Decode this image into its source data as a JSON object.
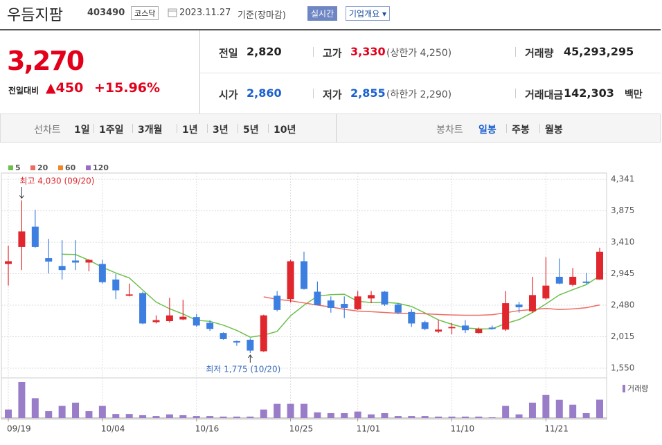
{
  "header": {
    "name": "우듬지팜",
    "code": "403490",
    "market": "코스닥",
    "date": "2023.11.27",
    "basis": "기준(장마감)",
    "realtime": "실시간",
    "overview": "기업개요"
  },
  "summary": {
    "price": "3,270",
    "change_label": "전일대비",
    "change": "450",
    "change_pct": "+15.96%",
    "items": [
      {
        "label": "전일",
        "value": "2,820"
      },
      {
        "label": "고가",
        "value": "3,330",
        "extra": "(상한가 4,250)"
      },
      {
        "label": "거래량",
        "value": "45,293,295"
      },
      {
        "label": "시가",
        "value": "2,860"
      },
      {
        "label": "저가",
        "value": "2,855",
        "extra": "(하한가 2,290)"
      },
      {
        "label": "거래대금",
        "value": "142,303",
        "unit": "백만"
      }
    ]
  },
  "tabs": {
    "line_label": "선차트",
    "line_options": [
      "1일",
      "1주일",
      "3개월",
      "1년",
      "3년",
      "5년",
      "10년"
    ],
    "candle_label": "봉차트",
    "candle_options": [
      "일봉",
      "주봉",
      "월봉"
    ]
  },
  "chart_data": {
    "type": "candlestick",
    "categories": [
      "09/19",
      null,
      null,
      null,
      null,
      null,
      null,
      "10/04",
      null,
      null,
      null,
      null,
      null,
      null,
      "10/16",
      null,
      null,
      null,
      null,
      null,
      null,
      "10/25",
      null,
      null,
      null,
      null,
      "11/01",
      null,
      null,
      null,
      null,
      null,
      null,
      "11/10",
      null,
      null,
      null,
      null,
      null,
      null,
      "11/21",
      null,
      null,
      null,
      null
    ],
    "open": [
      3090,
      3340,
      3640,
      3175,
      3060,
      3140,
      3110,
      3090,
      2860,
      2630,
      2660,
      2230,
      2245,
      2270,
      2305,
      2220,
      2070,
      1950,
      1970,
      1800,
      2620,
      2570,
      3130,
      2680,
      2550,
      2500,
      2420,
      2580,
      2680,
      2490,
      2380,
      2230,
      2090,
      2140,
      2180,
      2070,
      2150,
      2120,
      2490,
      2390,
      2580,
      2900,
      2780,
      2830,
      2860
    ],
    "high": [
      3360,
      4030,
      3890,
      3460,
      3440,
      3440,
      3160,
      3150,
      2940,
      2800,
      2680,
      2330,
      2590,
      2560,
      2350,
      2260,
      2080,
      1960,
      1990,
      2340,
      2690,
      3150,
      3270,
      2830,
      2610,
      2610,
      2690,
      2690,
      2690,
      2510,
      2420,
      2250,
      2260,
      2220,
      2260,
      2150,
      2180,
      2690,
      2530,
      2900,
      3190,
      3170,
      3030,
      2960,
      3330
    ],
    "low": [
      2770,
      3000,
      3330,
      2950,
      2860,
      3000,
      2980,
      2800,
      2570,
      2610,
      2200,
      2210,
      2225,
      2260,
      2160,
      2100,
      1970,
      1880,
      1775,
      1790,
      2390,
      2520,
      2710,
      2480,
      2370,
      2290,
      2410,
      2510,
      2470,
      2350,
      2160,
      2110,
      2070,
      2050,
      2070,
      2060,
      2120,
      2100,
      2370,
      2370,
      2560,
      2790,
      2760,
      2790,
      2855
    ],
    "close": [
      3130,
      3570,
      3340,
      3125,
      3000,
      3110,
      3150,
      2820,
      2700,
      2640,
      2210,
      2260,
      2330,
      2310,
      2180,
      2130,
      1980,
      1940,
      1810,
      2330,
      2410,
      3130,
      2720,
      2480,
      2440,
      2440,
      2610,
      2630,
      2490,
      2370,
      2210,
      2130,
      2120,
      2160,
      2110,
      2130,
      2140,
      2510,
      2450,
      2630,
      2770,
      2800,
      2900,
      2820,
      3270
    ],
    "up_color": "#e0272d",
    "down_color": "#3d7fe0",
    "moving_averages": [
      {
        "name": "5",
        "color": "#6cc04a",
        "shown": true
      },
      {
        "name": "20",
        "color": "#ee6b63",
        "shown": true
      },
      {
        "name": "60",
        "color": "#f0882a",
        "shown": false
      },
      {
        "name": "120",
        "color": "#9a6cc8",
        "shown": false
      }
    ],
    "volume": {
      "name": "거래량",
      "color": "#9a7dc8",
      "values": [
        21000000,
        89000000,
        49000000,
        17000000,
        30000000,
        38000000,
        17000000,
        30000000,
        10000000,
        10000000,
        7000000,
        5000000,
        9000000,
        7000000,
        5000000,
        5000000,
        3500000,
        3500000,
        3500000,
        21000000,
        35000000,
        35000000,
        35000000,
        14000000,
        12000000,
        12000000,
        16000000,
        9000000,
        12000000,
        5000000,
        5000000,
        5000000,
        3500000,
        3500000,
        3500000,
        3500000,
        1800000,
        30000000,
        9000000,
        38000000,
        57000000,
        45000000,
        33000000,
        12000000,
        45293295
      ]
    },
    "ylim": [
      1550,
      4341
    ],
    "yticks": [
      {
        "value": 1550,
        "label": "1,550"
      },
      {
        "value": 2015,
        "label": "2,015"
      },
      {
        "value": 2480,
        "label": "2,480"
      },
      {
        "value": 2945,
        "label": "2,945"
      },
      {
        "value": 3410,
        "label": "3,410"
      },
      {
        "value": 3875,
        "label": "3,875"
      },
      {
        "value": 4341,
        "label": "4,341"
      }
    ],
    "high_label": "최고 4,030 (09/20)",
    "low_label": "최저 1,775 (10/20)",
    "grid": true
  }
}
